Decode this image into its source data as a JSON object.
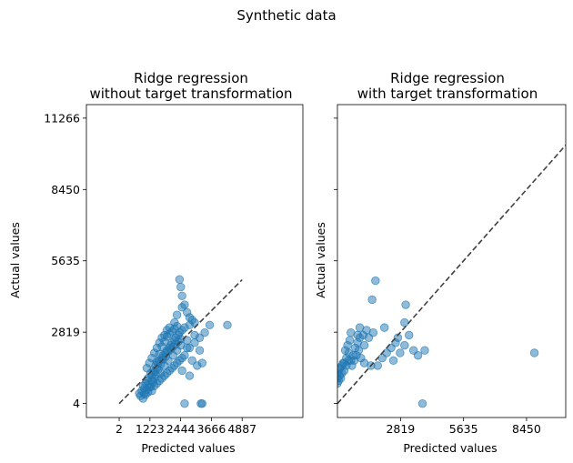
{
  "figure": {
    "suptitle": "Synthetic data"
  },
  "chart_data": [
    {
      "type": "scatter",
      "title_line1": "Ridge regression",
      "title_line2": "without target transformation",
      "xlabel": "Predicted values",
      "ylabel": "Actual values",
      "xlim": [
        -1300,
        7300
      ],
      "ylim": [
        -550,
        11800
      ],
      "xticks": [
        2,
        1223,
        2444,
        3666,
        4887
      ],
      "xtick_labels": [
        "2",
        "1223",
        "2444",
        "3666",
        "4887"
      ],
      "yticks": [
        4,
        2819,
        5635,
        8450,
        11266
      ],
      "ytick_labels": [
        "4",
        "2819",
        "5635",
        "8450",
        "11266"
      ],
      "diagonal": [
        [
          0,
          4887
        ],
        [
          0,
          4887
        ]
      ],
      "points": [
        [
          800,
          400
        ],
        [
          850,
          300
        ],
        [
          900,
          500
        ],
        [
          950,
          700
        ],
        [
          1000,
          600
        ],
        [
          1050,
          800
        ],
        [
          1100,
          900
        ],
        [
          1150,
          1000
        ],
        [
          1200,
          750
        ],
        [
          1250,
          1200
        ],
        [
          1300,
          1100
        ],
        [
          1350,
          1300
        ],
        [
          1400,
          1000
        ],
        [
          1450,
          1500
        ],
        [
          1500,
          1400
        ],
        [
          1550,
          1600
        ],
        [
          1600,
          1700
        ],
        [
          1650,
          1200
        ],
        [
          1700,
          1800
        ],
        [
          1750,
          1900
        ],
        [
          1800,
          1500
        ],
        [
          1850,
          2000
        ],
        [
          1900,
          2100
        ],
        [
          1950,
          1700
        ],
        [
          2000,
          2200
        ],
        [
          2050,
          2300
        ],
        [
          2100,
          2400
        ],
        [
          2150,
          1900
        ],
        [
          2200,
          2500
        ],
        [
          2250,
          2600
        ],
        [
          2300,
          2100
        ],
        [
          2350,
          2700
        ],
        [
          2400,
          2800
        ],
        [
          2450,
          2300
        ],
        [
          2500,
          2900
        ],
        [
          2600,
          3000
        ],
        [
          2700,
          2500
        ],
        [
          2800,
          3100
        ],
        [
          2900,
          3300
        ],
        [
          3000,
          2700
        ],
        [
          1100,
          1400
        ],
        [
          1200,
          1600
        ],
        [
          1300,
          1800
        ],
        [
          1400,
          2000
        ],
        [
          1500,
          2200
        ],
        [
          1600,
          2400
        ],
        [
          1700,
          2600
        ],
        [
          1800,
          2700
        ],
        [
          1900,
          2900
        ],
        [
          2000,
          3000
        ],
        [
          1300,
          500
        ],
        [
          1400,
          700
        ],
        [
          1500,
          800
        ],
        [
          1600,
          900
        ],
        [
          1700,
          1000
        ],
        [
          1800,
          1100
        ],
        [
          1900,
          1200
        ],
        [
          2000,
          1300
        ],
        [
          2100,
          1400
        ],
        [
          2200,
          1500
        ],
        [
          2300,
          1600
        ],
        [
          2400,
          1700
        ],
        [
          2500,
          1800
        ],
        [
          2600,
          1900
        ],
        [
          2800,
          2200
        ],
        [
          3000,
          2400
        ],
        [
          3200,
          2600
        ],
        [
          2300,
          3500
        ],
        [
          2500,
          3800
        ],
        [
          2800,
          3400
        ],
        [
          3000,
          3200
        ],
        [
          2200,
          3200
        ],
        [
          2700,
          3600
        ],
        [
          2450,
          4600
        ],
        [
          2400,
          4900
        ],
        [
          2500,
          4250
        ],
        [
          2600,
          3900
        ],
        [
          3400,
          2800
        ],
        [
          3600,
          3100
        ],
        [
          4300,
          3100
        ],
        [
          2700,
          2200
        ],
        [
          3100,
          1500
        ],
        [
          3300,
          1600
        ],
        [
          2500,
          1300
        ],
        [
          2800,
          1100
        ],
        [
          2900,
          1700
        ],
        [
          3200,
          2100
        ],
        [
          2600,
          0
        ],
        [
          3250,
          0
        ],
        [
          3300,
          0
        ],
        [
          950,
          200
        ],
        [
          1050,
          350
        ],
        [
          1150,
          450
        ],
        [
          1250,
          650
        ],
        [
          1350,
          850
        ],
        [
          1450,
          1150
        ],
        [
          1550,
          1350
        ],
        [
          1650,
          1550
        ],
        [
          1750,
          1750
        ],
        [
          1850,
          1850
        ],
        [
          1950,
          2050
        ],
        [
          2050,
          2150
        ],
        [
          2150,
          2250
        ],
        [
          2250,
          2350
        ],
        [
          2350,
          2450
        ],
        [
          2450,
          2550
        ],
        [
          1000,
          400
        ],
        [
          1100,
          550
        ],
        [
          1200,
          650
        ],
        [
          1300,
          900
        ],
        [
          1400,
          1250
        ],
        [
          1500,
          1650
        ],
        [
          1600,
          1950
        ],
        [
          1700,
          2250
        ],
        [
          1800,
          2450
        ],
        [
          1900,
          2650
        ],
        [
          2000,
          2750
        ],
        [
          2100,
          2850
        ],
        [
          2200,
          2950
        ],
        [
          2300,
          3050
        ]
      ]
    },
    {
      "type": "scatter",
      "title_line1": "Ridge regression",
      "title_line2": "with target transformation",
      "xlabel": "Predicted values",
      "ylabel": "Actual values",
      "xlim": [
        0,
        10200
      ],
      "ylim": [
        -550,
        11800
      ],
      "xticks": [
        2819,
        5635,
        8450
      ],
      "xtick_labels": [
        "2819",
        "5635",
        "8450"
      ],
      "yticks": [
        4,
        2819,
        5635,
        8450,
        11266
      ],
      "ytick_labels": [
        "",
        "",
        "",
        "",
        ""
      ],
      "diagonal": [
        [
          0,
          10200
        ],
        [
          0,
          10200
        ]
      ],
      "points": [
        [
          100,
          1400
        ],
        [
          200,
          1500
        ],
        [
          300,
          1600
        ],
        [
          400,
          1800
        ],
        [
          500,
          2000
        ],
        [
          600,
          1700
        ],
        [
          700,
          1900
        ],
        [
          800,
          2200
        ],
        [
          900,
          2400
        ],
        [
          1000,
          2600
        ],
        [
          1200,
          2300
        ],
        [
          1400,
          2600
        ],
        [
          1600,
          2800
        ],
        [
          1800,
          1500
        ],
        [
          2000,
          1800
        ],
        [
          2200,
          2000
        ],
        [
          2400,
          2200
        ],
        [
          2600,
          2400
        ],
        [
          2800,
          2000
        ],
        [
          3000,
          2300
        ],
        [
          3200,
          2700
        ],
        [
          3400,
          2100
        ],
        [
          3600,
          1900
        ],
        [
          100,
          1100
        ],
        [
          200,
          1200
        ],
        [
          300,
          1300
        ],
        [
          400,
          1500
        ],
        [
          500,
          1700
        ],
        [
          50,
          900
        ],
        [
          150,
          1000
        ],
        [
          250,
          1600
        ],
        [
          350,
          2100
        ],
        [
          450,
          2300
        ],
        [
          550,
          2500
        ],
        [
          650,
          1500
        ],
        [
          750,
          1700
        ],
        [
          850,
          1900
        ],
        [
          950,
          2100
        ],
        [
          1050,
          1800
        ],
        [
          1150,
          2700
        ],
        [
          1550,
          4100
        ],
        [
          1700,
          4850
        ],
        [
          3000,
          3200
        ],
        [
          3050,
          3900
        ],
        [
          3900,
          2100
        ],
        [
          8800,
          2000
        ],
        [
          3800,
          0
        ],
        [
          0,
          1200
        ],
        [
          1200,
          1600
        ],
        [
          1500,
          1500
        ],
        [
          2500,
          1700
        ],
        [
          2700,
          2600
        ],
        [
          1300,
          2900
        ],
        [
          900,
          2700
        ],
        [
          600,
          2800
        ],
        [
          2100,
          3000
        ],
        [
          1000,
          3000
        ],
        [
          0,
          800
        ],
        [
          0,
          1000
        ],
        [
          80,
          1350
        ]
      ]
    }
  ]
}
